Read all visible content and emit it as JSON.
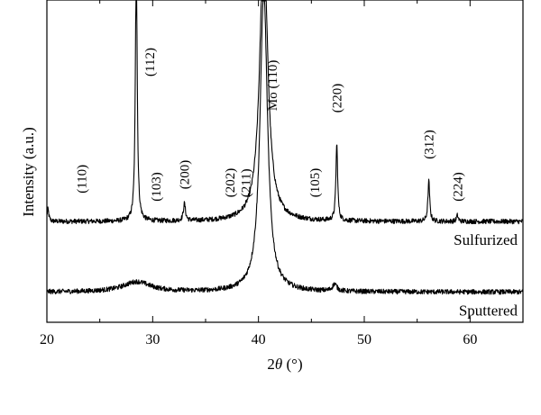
{
  "chart_data": {
    "type": "line",
    "xlabel_prefix": "2",
    "xlabel_symbol": "θ",
    "xlabel_suffix": " (°)",
    "ylabel": "Intensity (a.u.)",
    "xlim": [
      20,
      65
    ],
    "xticks": [
      "20",
      "30",
      "40",
      "50",
      "60"
    ],
    "grid": false,
    "y_ticks_labeled": false,
    "series": [
      {
        "name": "Sulfurized",
        "baseline": 0.5,
        "noise": 0.012,
        "peaks": [
          {
            "x": 20.1,
            "h": 0.06,
            "w": 0.1
          },
          {
            "x": 28.45,
            "h": 1.35,
            "w": 0.1
          },
          {
            "x": 33.0,
            "h": 0.085,
            "w": 0.12
          },
          {
            "x": 40.5,
            "h": 1.4,
            "w": 0.45
          },
          {
            "x": 47.4,
            "h": 0.38,
            "w": 0.1
          },
          {
            "x": 56.1,
            "h": 0.2,
            "w": 0.1
          },
          {
            "x": 58.8,
            "h": 0.03,
            "w": 0.1
          }
        ]
      },
      {
        "name": "Sputtered",
        "baseline": 0.15,
        "noise": 0.012,
        "peaks": [
          {
            "x": 28.5,
            "h": 0.05,
            "w": 1.6
          },
          {
            "x": 40.5,
            "h": 1.5,
            "w": 0.42
          },
          {
            "x": 47.2,
            "h": 0.035,
            "w": 0.25
          }
        ]
      }
    ],
    "annotations": [
      {
        "text": "(110)",
        "x": 23.3,
        "y": 0.64
      },
      {
        "text": "(112)",
        "x": 29.7,
        "y": 1.22
      },
      {
        "text": "(103)",
        "x": 30.3,
        "y": 0.6
      },
      {
        "text": "(200)",
        "x": 33.0,
        "y": 0.66
      },
      {
        "text": "(202)",
        "x": 37.3,
        "y": 0.62
      },
      {
        "text": "(211)",
        "x": 38.8,
        "y": 0.62
      },
      {
        "text": "Mo (110)",
        "x": 41.3,
        "y": 1.05
      },
      {
        "text": "(105)",
        "x": 45.3,
        "y": 0.62
      },
      {
        "text": "(220)",
        "x": 47.4,
        "y": 1.04
      },
      {
        "text": "(312)",
        "x": 56.1,
        "y": 0.81
      },
      {
        "text": "(224)",
        "x": 58.8,
        "y": 0.6
      }
    ]
  }
}
